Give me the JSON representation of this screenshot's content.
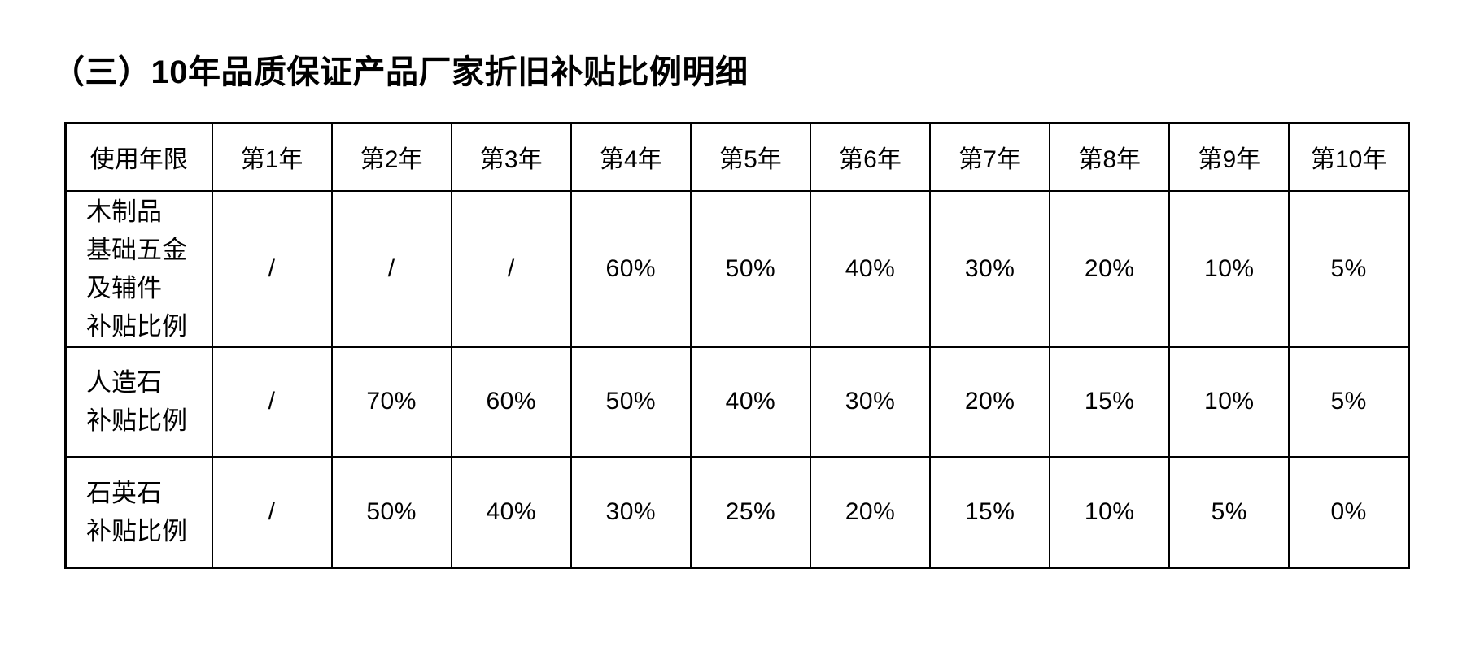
{
  "title": "（三）10年品质保证产品厂家折旧补贴比例明细",
  "table": {
    "header": [
      "使用年限",
      "第1年",
      "第2年",
      "第3年",
      "第4年",
      "第5年",
      "第6年",
      "第7年",
      "第8年",
      "第9年",
      "第10年"
    ],
    "rows": [
      {
        "label_lines": [
          "木制品",
          "基础五金",
          "及辅件",
          "补贴比例"
        ],
        "values": [
          "/",
          "/",
          "/",
          "60%",
          "50%",
          "40%",
          "30%",
          "20%",
          "10%",
          "5%"
        ]
      },
      {
        "label_lines": [
          "人造石",
          "补贴比例"
        ],
        "values": [
          "/",
          "70%",
          "60%",
          "50%",
          "40%",
          "30%",
          "20%",
          "15%",
          "10%",
          "5%"
        ]
      },
      {
        "label_lines": [
          "石英石",
          "补贴比例"
        ],
        "values": [
          "/",
          "50%",
          "40%",
          "30%",
          "25%",
          "20%",
          "15%",
          "10%",
          "5%",
          "0%"
        ]
      }
    ]
  },
  "colors": {
    "text": "#000000",
    "border": "#000000",
    "background": "#ffffff"
  }
}
